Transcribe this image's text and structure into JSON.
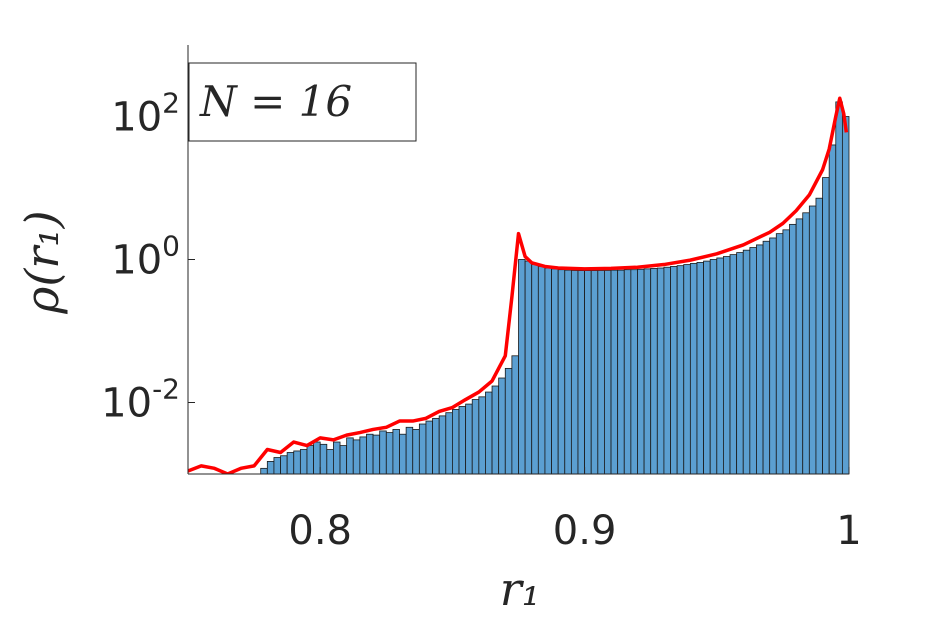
{
  "chart_data": {
    "type": "histogram",
    "ylabel": "ρ(r₁)",
    "xlabel": "r₁",
    "annotation": "N = 16",
    "xlim": [
      0.75,
      1
    ],
    "xticks": [
      0.8,
      0.9,
      1
    ],
    "ylim": [
      0.001,
      1000
    ],
    "log_y": true,
    "yticks": [
      {
        "value": 0.01,
        "label": "10^-2"
      },
      {
        "value": 1,
        "label": "10^0"
      },
      {
        "value": 100,
        "label": "10^2"
      }
    ],
    "bins": [
      0.75,
      0.7525,
      0.755,
      0.7575,
      0.76,
      0.7625,
      0.765,
      0.7675,
      0.77,
      0.7725,
      0.775,
      0.7775,
      0.78,
      0.7825,
      0.785,
      0.7875,
      0.79,
      0.7925,
      0.795,
      0.7975,
      0.8,
      0.8025,
      0.805,
      0.8075,
      0.81,
      0.8125,
      0.815,
      0.8175,
      0.82,
      0.8225,
      0.825,
      0.8275,
      0.83,
      0.8325,
      0.835,
      0.8375,
      0.84,
      0.8425,
      0.845,
      0.8475,
      0.85,
      0.8525,
      0.855,
      0.8575,
      0.86,
      0.8625,
      0.865,
      0.8675,
      0.87,
      0.8725,
      0.875,
      0.8775,
      0.88,
      0.8825,
      0.885,
      0.8875,
      0.89,
      0.8925,
      0.895,
      0.8975,
      0.9,
      0.9025,
      0.905,
      0.9075,
      0.91,
      0.9125,
      0.915,
      0.9175,
      0.92,
      0.9225,
      0.925,
      0.9275,
      0.93,
      0.9325,
      0.935,
      0.9375,
      0.94,
      0.9425,
      0.945,
      0.9475,
      0.95,
      0.9525,
      0.955,
      0.9575,
      0.96,
      0.9625,
      0.965,
      0.9675,
      0.97,
      0.9725,
      0.975,
      0.9775,
      0.98,
      0.9825,
      0.985,
      0.9875,
      0.99,
      0.9925,
      0.995,
      0.9975,
      1
    ],
    "counts": [
      0,
      0,
      0,
      0,
      0,
      0,
      0,
      0,
      0,
      0,
      0,
      0.0012,
      0.0015,
      0.0017,
      0.0018,
      0.002,
      0.0021,
      0.0022,
      0.0025,
      0.0028,
      0.0026,
      0.0022,
      0.0028,
      0.0025,
      0.0032,
      0.003,
      0.0033,
      0.0036,
      0.0035,
      0.004,
      0.0038,
      0.0042,
      0.0036,
      0.0045,
      0.0042,
      0.005,
      0.0055,
      0.006,
      0.0065,
      0.0072,
      0.008,
      0.0088,
      0.0095,
      0.011,
      0.012,
      0.014,
      0.017,
      0.022,
      0.03,
      0.045,
      1.0,
      0.95,
      0.85,
      0.8,
      0.76,
      0.74,
      0.72,
      0.71,
      0.7,
      0.7,
      0.7,
      0.7,
      0.7,
      0.7,
      0.71,
      0.71,
      0.72,
      0.72,
      0.73,
      0.74,
      0.75,
      0.76,
      0.78,
      0.8,
      0.82,
      0.85,
      0.88,
      0.91,
      0.95,
      1.0,
      1.05,
      1.1,
      1.17,
      1.25,
      1.35,
      1.47,
      1.6,
      1.8,
      2.0,
      2.3,
      2.6,
      3.1,
      3.7,
      4.5,
      5.6,
      7.2,
      14,
      40,
      160,
      100
    ],
    "color": "#5b9fd1",
    "edge_color": "#1a1a1a",
    "line": {
      "color": "#ff0000",
      "x": [
        0.75,
        0.755,
        0.76,
        0.765,
        0.77,
        0.775,
        0.78,
        0.785,
        0.79,
        0.795,
        0.8,
        0.805,
        0.81,
        0.815,
        0.82,
        0.825,
        0.83,
        0.835,
        0.84,
        0.845,
        0.85,
        0.855,
        0.86,
        0.865,
        0.87,
        0.8725,
        0.875,
        0.8775,
        0.88,
        0.885,
        0.89,
        0.9,
        0.91,
        0.92,
        0.93,
        0.94,
        0.95,
        0.96,
        0.97,
        0.975,
        0.98,
        0.985,
        0.99,
        0.9925,
        0.995,
        0.9965,
        0.998,
        0.999
      ],
      "values": [
        0.0011,
        0.0013,
        0.0012,
        0.001,
        0.0012,
        0.0013,
        0.0022,
        0.002,
        0.0028,
        0.0025,
        0.0032,
        0.003,
        0.0035,
        0.0038,
        0.0042,
        0.0045,
        0.0055,
        0.0055,
        0.006,
        0.0075,
        0.0085,
        0.011,
        0.014,
        0.02,
        0.045,
        0.3,
        2.3,
        1.1,
        0.9,
        0.8,
        0.76,
        0.74,
        0.75,
        0.78,
        0.85,
        0.98,
        1.2,
        1.6,
        2.4,
        3.2,
        4.8,
        8,
        18,
        35,
        100,
        180,
        110,
        60
      ]
    }
  }
}
